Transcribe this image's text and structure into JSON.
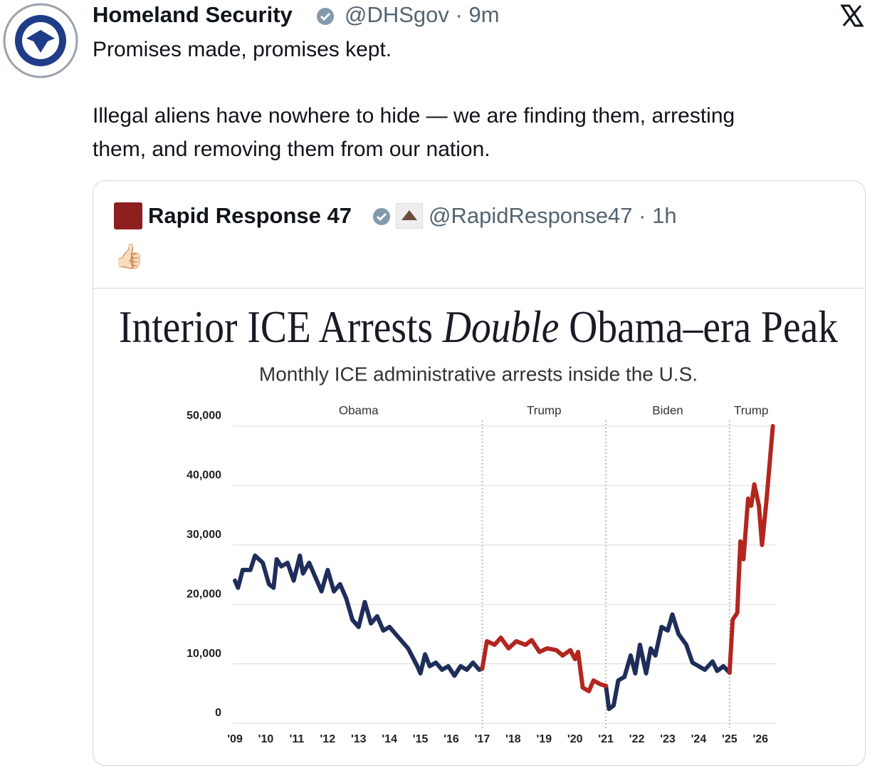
{
  "tweet": {
    "name": "Homeland Security",
    "handle": "@DHSgov · 9m",
    "lines": [
      "Promises made, promises kept.",
      "Illegal aliens have nowhere to hide — we are finding them, arresting",
      "them, and removing them from our nation."
    ]
  },
  "quote": {
    "name": "Rapid Response 47",
    "handle": "@RapidResponse47 · 1h",
    "text": "👍🏻"
  },
  "chart_data": {
    "type": "line",
    "title": [
      "Interior ICE Arrests ",
      "Double",
      " Obama–era Peak"
    ],
    "subtitle": "Monthly ICE administrative arrests inside the U.S.",
    "periods": [
      "Obama",
      "Trump",
      "Biden",
      "Trump"
    ],
    "period_bounds": [
      2009,
      2017,
      2021,
      2025,
      2026.4
    ],
    "xlim": [
      2008.93,
      2026.5
    ],
    "xticks": [
      {
        "value": 2009,
        "label": "'09"
      },
      {
        "value": 2010,
        "label": "'10"
      },
      {
        "value": 2011,
        "label": "'11"
      },
      {
        "value": 2012,
        "label": "'12"
      },
      {
        "value": 2013,
        "label": "'13"
      },
      {
        "value": 2014,
        "label": "'14"
      },
      {
        "value": 2015,
        "label": "'15"
      },
      {
        "value": 2016,
        "label": "'16"
      },
      {
        "value": 2017,
        "label": "'17"
      },
      {
        "value": 2018,
        "label": "'18"
      },
      {
        "value": 2019,
        "label": "'19"
      },
      {
        "value": 2020,
        "label": "'20"
      },
      {
        "value": 2021,
        "label": "'21"
      },
      {
        "value": 2022,
        "label": "'22"
      },
      {
        "value": 2023,
        "label": "'23"
      },
      {
        "value": 2024,
        "label": "'24"
      },
      {
        "value": 2025,
        "label": "'25"
      },
      {
        "value": 2026,
        "label": "'26"
      }
    ],
    "ylim": [
      0,
      50000
    ],
    "yticks": [
      0,
      {
        "value": 10000,
        "label": "10,000"
      },
      {
        "value": 20000,
        "label": "20,000"
      },
      {
        "value": 30000,
        "label": "30,000"
      },
      {
        "value": 40000,
        "label": "40,000"
      },
      {
        "value": 50000,
        "label": "50,000"
      }
    ],
    "grid": true,
    "x": [
      2009.0,
      2009.1,
      2009.25,
      2009.5,
      2009.65,
      2009.9,
      2010.1,
      2010.25,
      2010.35,
      2010.5,
      2010.7,
      2010.9,
      2011.1,
      2011.2,
      2011.4,
      2011.6,
      2011.8,
      2012.0,
      2012.2,
      2012.4,
      2012.6,
      2012.8,
      2013.0,
      2013.2,
      2013.4,
      2013.6,
      2013.8,
      2014.0,
      2014.3,
      2014.6,
      2014.9,
      2015.0,
      2015.15,
      2015.3,
      2015.5,
      2015.7,
      2015.9,
      2016.1,
      2016.3,
      2016.5,
      2016.7,
      2016.9,
      2017.0,
      2017.15,
      2017.4,
      2017.6,
      2017.85,
      2018.1,
      2018.4,
      2018.6,
      2018.85,
      2019.1,
      2019.4,
      2019.6,
      2019.85,
      2020.0,
      2020.1,
      2020.25,
      2020.45,
      2020.6,
      2020.8,
      2021.0,
      2021.1,
      2021.25,
      2021.4,
      2021.6,
      2021.8,
      2021.95,
      2022.1,
      2022.3,
      2022.45,
      2022.6,
      2022.8,
      2023.0,
      2023.15,
      2023.35,
      2023.6,
      2023.8,
      2024.0,
      2024.2,
      2024.45,
      2024.6,
      2024.8,
      2025.0,
      2025.1,
      2025.25,
      2025.35,
      2025.45,
      2025.6,
      2025.7,
      2025.8,
      2025.95,
      2026.05,
      2026.2,
      2026.4
    ],
    "series": [
      {
        "color": "#1f2d5a",
        "values": [
          24000,
          22800,
          25800,
          25800,
          28200,
          27000,
          23400,
          22800,
          27600,
          26400,
          27000,
          24000,
          28200,
          25200,
          27000,
          24600,
          22200,
          25800,
          22200,
          23400,
          21000,
          17400,
          16200,
          20400,
          16800,
          18000,
          15600,
          16200,
          14400,
          12600,
          9600,
          8400,
          11600,
          9600,
          10200,
          9000,
          9600,
          8000,
          9600,
          9000,
          10200,
          9000,
          9200,
          null,
          null,
          null,
          null,
          null,
          null,
          null,
          null,
          null,
          null,
          null,
          null,
          null,
          null,
          null,
          null,
          null,
          null,
          6300,
          2400,
          3000,
          7200,
          7800,
          11400,
          8400,
          13200,
          8400,
          12600,
          11400,
          16200,
          15600,
          18300,
          15000,
          13200,
          10200,
          9600,
          9000,
          10400,
          8800,
          9600,
          8500,
          null,
          null,
          null,
          null,
          null,
          null,
          null,
          null,
          null,
          null,
          null
        ]
      },
      {
        "color": "#b3261e",
        "values": [
          null,
          null,
          null,
          null,
          null,
          null,
          null,
          null,
          null,
          null,
          null,
          null,
          null,
          null,
          null,
          null,
          null,
          null,
          null,
          null,
          null,
          null,
          null,
          null,
          null,
          null,
          null,
          null,
          null,
          null,
          null,
          null,
          null,
          null,
          null,
          null,
          null,
          null,
          null,
          null,
          null,
          null,
          9200,
          13800,
          13200,
          14400,
          12600,
          13800,
          13200,
          14000,
          12000,
          12600,
          12300,
          11400,
          12300,
          10800,
          12000,
          6000,
          5400,
          7200,
          6600,
          6300,
          null,
          null,
          null,
          null,
          null,
          null,
          null,
          null,
          null,
          null,
          null,
          null,
          null,
          null,
          null,
          null,
          null,
          null,
          null,
          null,
          null,
          8500,
          17400,
          18600,
          30600,
          27600,
          37800,
          36600,
          40200,
          36600,
          30000,
          37800,
          50000
        ]
      }
    ]
  }
}
